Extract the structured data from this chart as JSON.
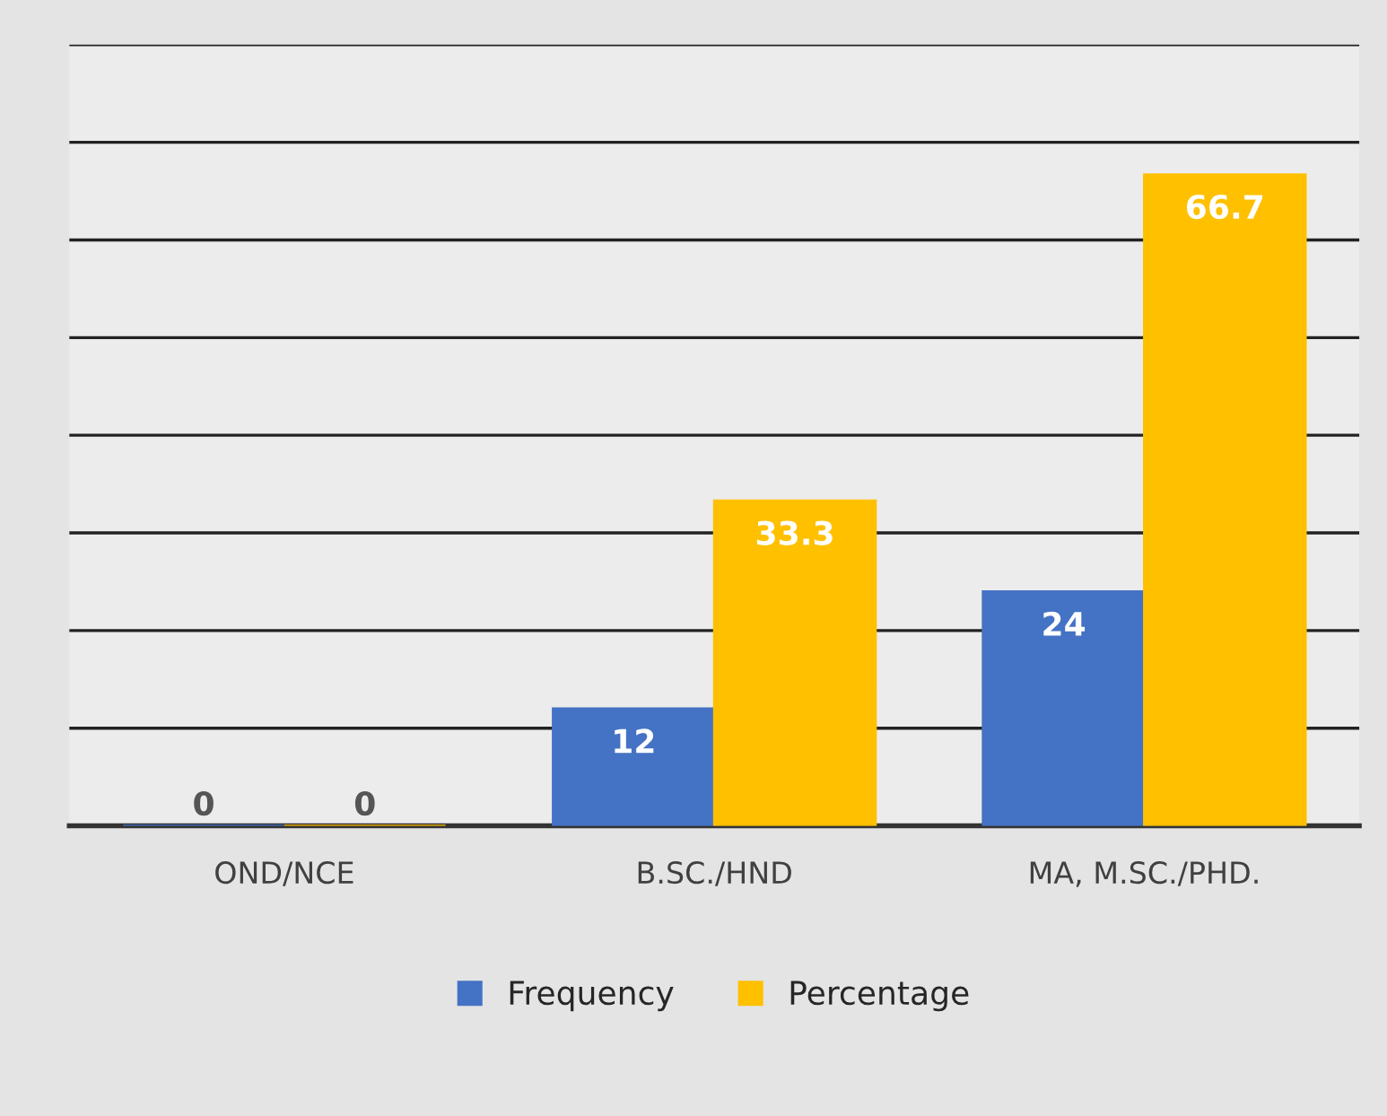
{
  "chart_data": {
    "type": "bar",
    "categories": [
      "OND/NCE",
      "B.SC./HND",
      "MA, M.SC./PHD."
    ],
    "series": [
      {
        "name": "Frequency",
        "color": "#4472c4",
        "values": [
          0,
          12,
          24
        ]
      },
      {
        "name": "Percentage",
        "color": "#ffc000",
        "values": [
          0,
          33.3,
          66.7
        ]
      }
    ],
    "ylim": [
      0,
      80
    ],
    "yticks": [
      {
        "value": 0,
        "label": null
      },
      {
        "value": 10,
        "label": null
      },
      {
        "value": 20,
        "label": null
      },
      {
        "value": 30,
        "label": null
      },
      {
        "value": 40,
        "label": null
      },
      {
        "value": 50,
        "label": null
      },
      {
        "value": 60,
        "label": null
      },
      {
        "value": 70,
        "label": null
      },
      {
        "value": 80,
        "label": null
      }
    ],
    "grid": "y",
    "legend": "bottom",
    "data_labels": true,
    "tick_labels": "x"
  }
}
